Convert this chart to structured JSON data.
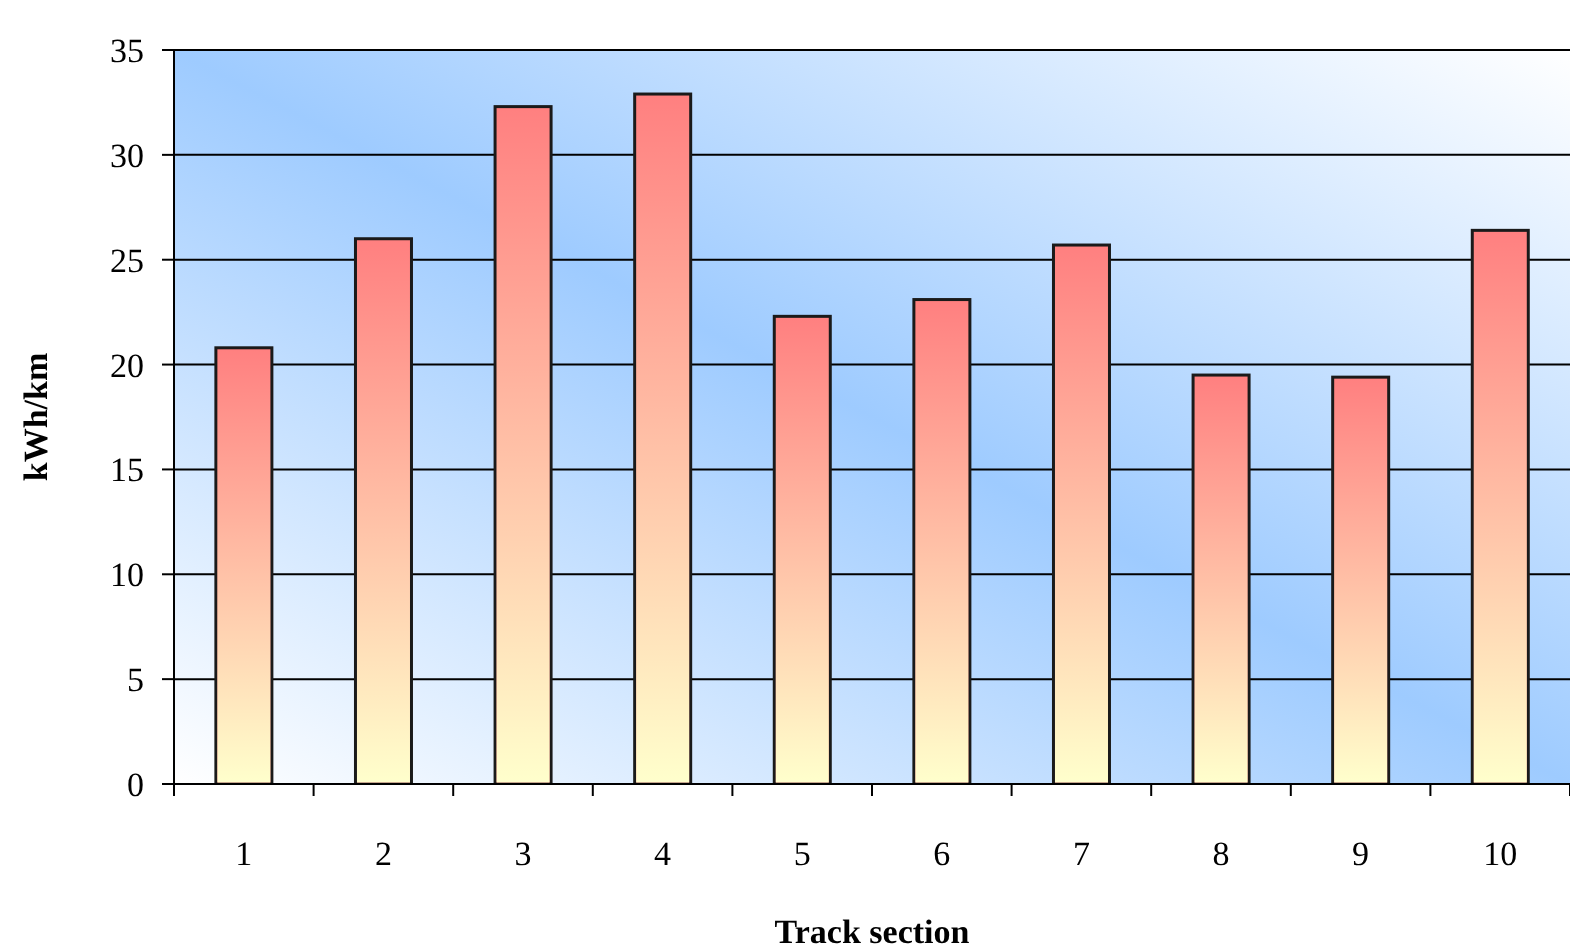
{
  "chart_data": {
    "type": "bar",
    "xlabel": "Track section",
    "ylabel": "kWh/km",
    "categories": [
      "1",
      "2",
      "3",
      "4",
      "5",
      "6",
      "7",
      "8",
      "9",
      "10"
    ],
    "values": [
      20.8,
      26.0,
      32.3,
      32.9,
      22.3,
      23.1,
      25.7,
      19.5,
      19.4,
      26.4
    ],
    "color": "#ff8080",
    "ylim": [
      0,
      35
    ],
    "yticks": [
      0,
      5,
      10,
      15,
      20,
      25,
      30,
      35
    ],
    "grid": "y"
  }
}
